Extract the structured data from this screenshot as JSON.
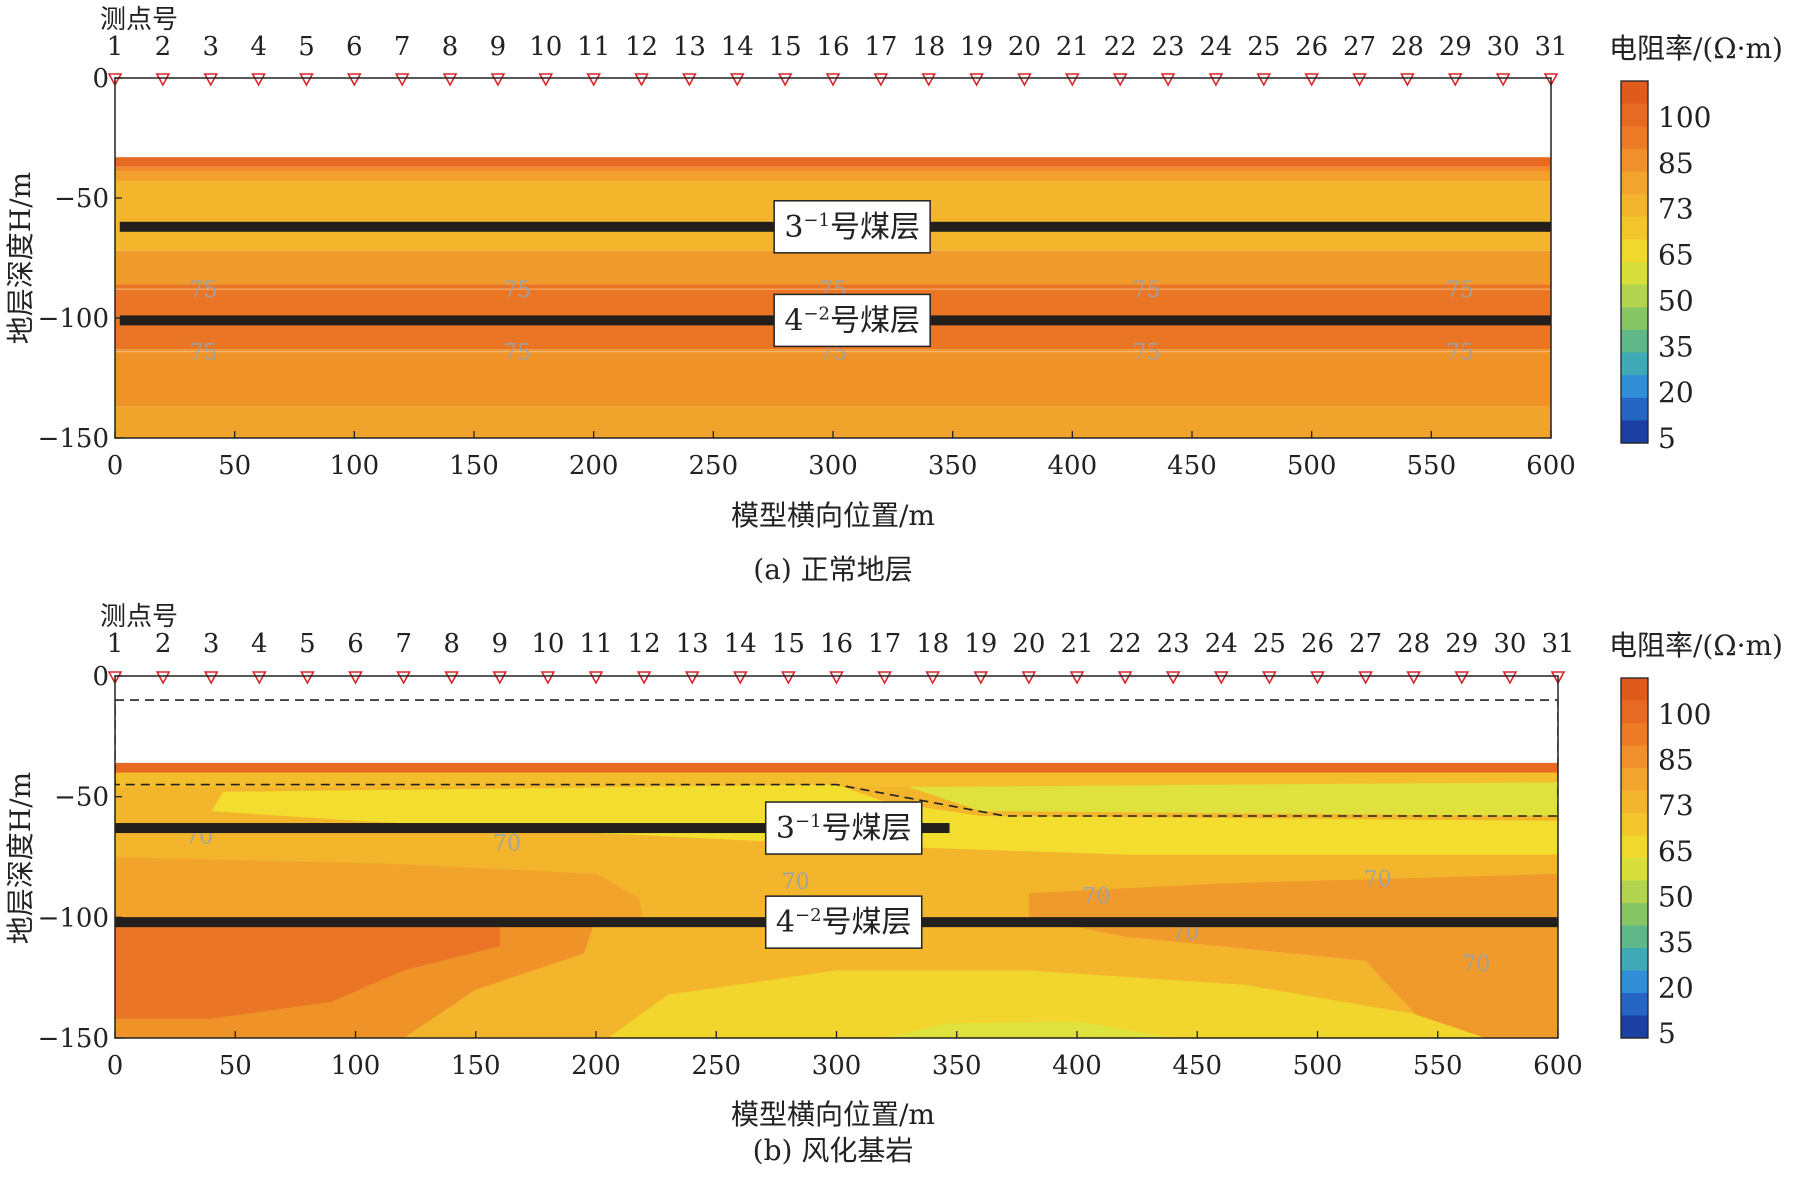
{
  "figure": {
    "colorbar": {
      "title": "电阻率/(Ω·m)",
      "tick_labels": [
        "100",
        "85",
        "73",
        "65",
        "50",
        "35",
        "20",
        "5"
      ],
      "colors": [
        "#e05a1c",
        "#e86a22",
        "#ed7b25",
        "#f0902a",
        "#f3a42c",
        "#f4b52c",
        "#f3c52b",
        "#f0d92c",
        "#d8de3a",
        "#b2d44e",
        "#86c665",
        "#5eb888",
        "#3fa9b7",
        "#2f8ed6",
        "#2566c4",
        "#1b3fa2"
      ]
    },
    "panels": [
      {
        "id": "a",
        "caption": "(a) 正常地层",
        "station_title": "测点号",
        "xlabel": "模型横向位置/m",
        "ylabel": "地层深度H/m",
        "seam_labels": [
          {
            "base": "3",
            "sup": "−1",
            "rest": "号煤层"
          },
          {
            "base": "4",
            "sup": "−2",
            "rest": "号煤层"
          }
        ]
      },
      {
        "id": "b",
        "caption": "(b) 风化基岩",
        "station_title": "测点号",
        "xlabel": "模型横向位置/m",
        "ylabel": "地层深度H/m",
        "seam_labels": [
          {
            "base": "3",
            "sup": "−1",
            "rest": "号煤层"
          },
          {
            "base": "4",
            "sup": "−2",
            "rest": "号煤层"
          }
        ]
      }
    ]
  },
  "chart_data": [
    {
      "type": "heatmap",
      "title": "(a) 正常地层",
      "xlabel": "模型横向位置/m",
      "ylabel": "地层深度H/m",
      "xlim": [
        0,
        600
      ],
      "ylim": [
        -150,
        0
      ],
      "xticks": [
        0,
        50,
        100,
        150,
        200,
        250,
        300,
        350,
        400,
        450,
        500,
        550,
        600
      ],
      "yticks": [
        0,
        -50,
        -100,
        -150
      ],
      "stations": {
        "title": "测点号",
        "labels": [
          "1",
          "2",
          "3",
          "4",
          "5",
          "6",
          "7",
          "8",
          "9",
          "10",
          "11",
          "12",
          "13",
          "14",
          "15",
          "16",
          "17",
          "18",
          "19",
          "20",
          "21",
          "22",
          "23",
          "24",
          "25",
          "26",
          "27",
          "28",
          "29",
          "30",
          "31"
        ],
        "x": [
          0,
          20,
          40,
          60,
          80,
          100,
          120,
          140,
          160,
          180,
          200,
          220,
          240,
          260,
          280,
          300,
          320,
          340,
          360,
          380,
          400,
          420,
          440,
          460,
          480,
          500,
          520,
          540,
          560,
          580,
          600
        ]
      },
      "layers": [
        {
          "top": -33,
          "bottom": -37,
          "color": "#e66a22"
        },
        {
          "top": -37,
          "bottom": -39,
          "color": "#f08a2a"
        },
        {
          "top": -39,
          "bottom": -43,
          "color": "#f2a02c"
        },
        {
          "top": -43,
          "bottom": -72,
          "color": "#f3b52c"
        },
        {
          "top": -72,
          "bottom": -86,
          "color": "#ef9a2a"
        },
        {
          "top": -86,
          "bottom": -113,
          "color": "#ea7524"
        },
        {
          "top": -113,
          "bottom": -137,
          "color": "#ef9328"
        },
        {
          "top": -137,
          "bottom": -150,
          "color": "#f1a42c"
        }
      ],
      "contours": [
        {
          "level": "75",
          "depth": -88,
          "label_x": [
            37,
            168,
            300,
            431,
            562
          ]
        },
        {
          "level": "75",
          "depth": -114,
          "label_x": [
            37,
            168,
            300,
            431,
            562
          ]
        }
      ],
      "coal_seams": [
        {
          "name": "3−1号煤层",
          "depth": -62,
          "x_start": 2,
          "x_end": 600,
          "label_x": 308
        },
        {
          "name": "4−2号煤层",
          "depth": -101,
          "x_start": 2,
          "x_end": 600,
          "label_x": 308
        }
      ],
      "colorbar": {
        "title": "电阻率/(Ω·m)",
        "ticks": [
          100,
          85,
          73,
          65,
          50,
          35,
          20,
          5
        ]
      }
    },
    {
      "type": "heatmap",
      "title": "(b) 风化基岩",
      "xlabel": "模型横向位置/m",
      "ylabel": "地层深度H/m",
      "xlim": [
        0,
        600
      ],
      "ylim": [
        -150,
        0
      ],
      "xticks": [
        0,
        50,
        100,
        150,
        200,
        250,
        300,
        350,
        400,
        450,
        500,
        550,
        600
      ],
      "yticks": [
        0,
        -50,
        -100,
        -150
      ],
      "stations": {
        "title": "测点号",
        "labels": [
          "1",
          "2",
          "3",
          "4",
          "5",
          "6",
          "7",
          "8",
          "9",
          "10",
          "11",
          "12",
          "13",
          "14",
          "15",
          "16",
          "17",
          "18",
          "19",
          "20",
          "21",
          "22",
          "23",
          "24",
          "25",
          "26",
          "27",
          "28",
          "29",
          "30",
          "31"
        ],
        "x": [
          0,
          20,
          40,
          60,
          80,
          100,
          120,
          140,
          160,
          180,
          200,
          220,
          240,
          260,
          280,
          300,
          320,
          340,
          360,
          380,
          400,
          420,
          440,
          460,
          480,
          500,
          520,
          540,
          560,
          580,
          600
        ]
      },
      "regions": [
        {
          "color": "#f3b52c",
          "points": [
            [
              0,
              -37
            ],
            [
              600,
              -37
            ],
            [
              600,
              -150
            ],
            [
              0,
              -150
            ]
          ]
        },
        {
          "color": "#f4bd2c",
          "points": [
            [
              0,
              -40
            ],
            [
              600,
              -40
            ],
            [
              600,
              -46
            ],
            [
              0,
              -46
            ]
          ]
        },
        {
          "color": "#f3dd2e",
          "points": [
            [
              45,
              -48
            ],
            [
              300,
              -45
            ],
            [
              320,
              -52
            ],
            [
              360,
              -58
            ],
            [
              600,
              -60
            ],
            [
              600,
              -74
            ],
            [
              420,
              -74
            ],
            [
              300,
              -70
            ],
            [
              220,
              -66
            ],
            [
              100,
              -60
            ],
            [
              40,
              -56
            ]
          ]
        },
        {
          "color": "#dfe13c",
          "points": [
            [
              330,
              -46
            ],
            [
              600,
              -44
            ],
            [
              600,
              -58
            ],
            [
              360,
              -56
            ]
          ]
        },
        {
          "color": "#f2a32c",
          "points": [
            [
              0,
              -75
            ],
            [
              120,
              -78
            ],
            [
              200,
              -82
            ],
            [
              218,
              -92
            ],
            [
              220,
              -103
            ],
            [
              0,
              -103
            ]
          ]
        },
        {
          "color": "#ef9a2a",
          "points": [
            [
              380,
              -90
            ],
            [
              460,
              -86
            ],
            [
              600,
              -82
            ],
            [
              600,
              -150
            ],
            [
              550,
              -150
            ],
            [
              520,
              -118
            ],
            [
              420,
              -108
            ],
            [
              380,
              -100
            ]
          ]
        },
        {
          "color": "#ef9228",
          "points": [
            [
              0,
              -100
            ],
            [
              200,
              -100
            ],
            [
              195,
              -115
            ],
            [
              150,
              -130
            ],
            [
              120,
              -150
            ],
            [
              0,
              -150
            ]
          ]
        },
        {
          "color": "#ea7524",
          "points": [
            [
              0,
              -100
            ],
            [
              160,
              -100
            ],
            [
              160,
              -112
            ],
            [
              120,
              -122
            ],
            [
              90,
              -135
            ],
            [
              40,
              -142
            ],
            [
              0,
              -142
            ]
          ]
        },
        {
          "color": "#f2d52d",
          "points": [
            [
              205,
              -150
            ],
            [
              230,
              -132
            ],
            [
              300,
              -122
            ],
            [
              380,
              -122
            ],
            [
              470,
              -128
            ],
            [
              540,
              -140
            ],
            [
              570,
              -150
            ]
          ]
        },
        {
          "color": "#dfe13c",
          "points": [
            [
              320,
              -150
            ],
            [
              345,
              -144
            ],
            [
              400,
              -143
            ],
            [
              440,
              -150
            ]
          ]
        }
      ],
      "contours": [
        {
          "level": "70",
          "label_pos": [
            [
              35,
              -66
            ],
            [
              163,
              -69
            ],
            [
              283,
              -85
            ],
            [
              408,
              -91
            ],
            [
              525,
              -84
            ],
            [
              445,
              -106
            ],
            [
              566,
              -119
            ]
          ]
        }
      ],
      "weathered_zone_boundary": [
        [
          0,
          -10
        ],
        [
          600,
          -10
        ],
        [
          600,
          -58
        ],
        [
          370,
          -58
        ],
        [
          300,
          -45
        ],
        [
          0,
          -45
        ]
      ],
      "coal_seams": [
        {
          "name": "3−1号煤层",
          "depth": -63,
          "x_start": 0,
          "x_end": 347,
          "label_x": 303
        },
        {
          "name": "4−2号煤层",
          "depth": -102,
          "x_start": 0,
          "x_end": 600,
          "label_x": 303
        }
      ],
      "colorbar": {
        "title": "电阻率/(Ω·m)",
        "ticks": [
          100,
          85,
          73,
          65,
          50,
          35,
          20,
          5
        ]
      }
    }
  ]
}
